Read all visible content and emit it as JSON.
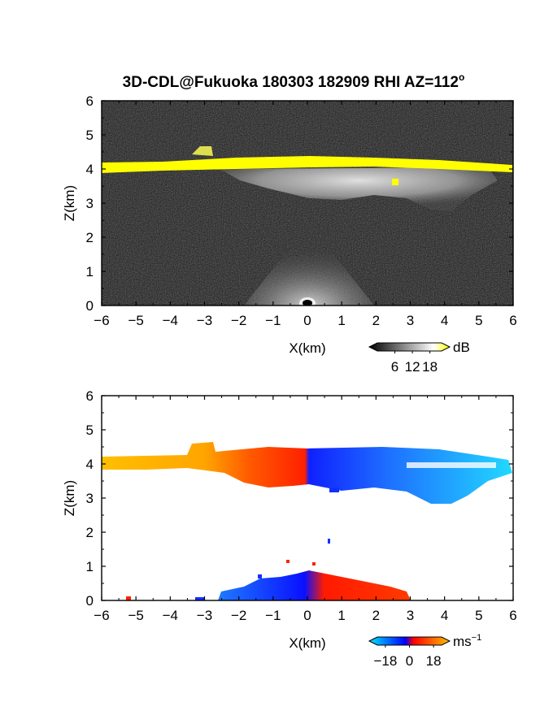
{
  "figure": {
    "title": "3D-CDL@Fukuoka 180303 182909 RHI AZ=112",
    "title_superscript": "o"
  },
  "chart_data": [
    {
      "type": "heatmap",
      "panel": "reflectivity",
      "xlabel": "X(km)",
      "ylabel": "Z(km)",
      "xlim": [
        -6,
        6
      ],
      "ylim": [
        0,
        6
      ],
      "x_ticks": [
        -6,
        -5,
        -4,
        -3,
        -2,
        -1,
        0,
        1,
        2,
        3,
        4,
        5,
        6
      ],
      "y_ticks": [
        0,
        1,
        2,
        3,
        4,
        5,
        6
      ],
      "grid": false,
      "colorbar": {
        "unit": "dB",
        "ticks": [
          6,
          12,
          18
        ],
        "range": [
          0,
          22
        ],
        "colors": [
          "#000000",
          "#ffffff",
          "#ffff00"
        ]
      },
      "features": [
        {
          "name": "melting-layer-band",
          "x_range": [
            -6,
            6
          ],
          "z_center": 4.15,
          "value_db": 20
        },
        {
          "name": "cloud-echo",
          "x_range": [
            -3.2,
            5.8
          ],
          "z_range": [
            2.8,
            4.1
          ],
          "value_db": 12
        },
        {
          "name": "near-ground-echo",
          "x_range": [
            -2,
            2
          ],
          "z_range": [
            0,
            0.8
          ],
          "value_db": 8
        }
      ]
    },
    {
      "type": "heatmap",
      "panel": "doppler-velocity",
      "xlabel": "X(km)",
      "ylabel": "Z(km)",
      "xlim": [
        -6,
        6
      ],
      "ylim": [
        0,
        6
      ],
      "x_ticks": [
        -6,
        -5,
        -4,
        -3,
        -2,
        -1,
        0,
        1,
        2,
        3,
        4,
        5,
        6
      ],
      "y_ticks": [
        0,
        1,
        2,
        3,
        4,
        5,
        6
      ],
      "grid": false,
      "colorbar": {
        "unit": "ms",
        "unit_exponent": "−1",
        "ticks": [
          "−18",
          "0",
          "18"
        ],
        "range": [
          -24,
          24
        ],
        "colors": [
          "#00e5ff",
          "#0000ff",
          "#ff0000",
          "#ffc000"
        ]
      },
      "features": [
        {
          "name": "upper-layer",
          "x_range": [
            -6,
            6
          ],
          "z_range": [
            2.8,
            4.6
          ],
          "velocity_left": 18,
          "velocity_right": -16
        },
        {
          "name": "low-level-echo",
          "x_range": [
            -2.5,
            3
          ],
          "z_range": [
            0,
            1.1
          ],
          "velocity_left": -18,
          "velocity_right": 14
        }
      ]
    }
  ]
}
